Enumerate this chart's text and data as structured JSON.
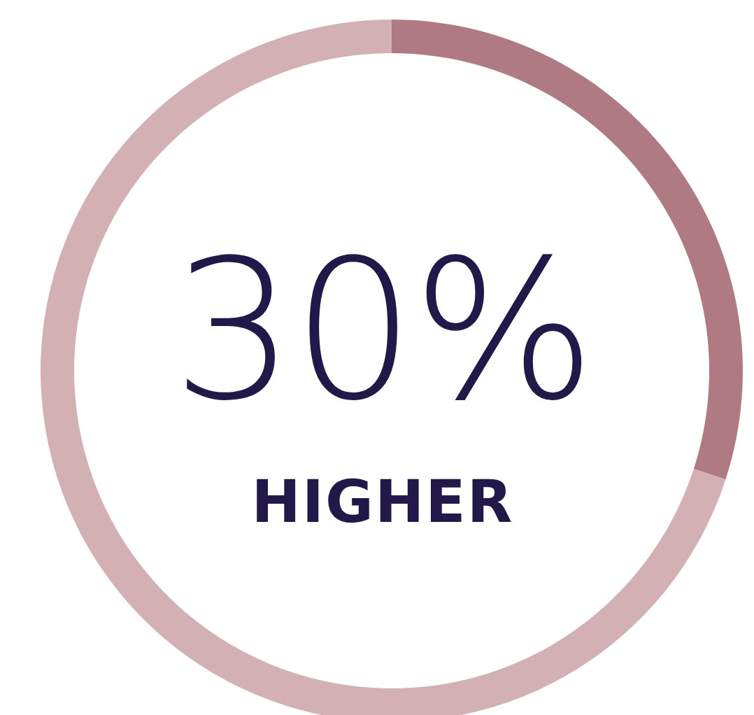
{
  "chart_data": {
    "type": "donut",
    "categories": [
      null,
      null
    ],
    "values": [
      30,
      70
    ],
    "colors": [
      "#b07a82",
      "#d3b0b4"
    ],
    "annotations": [
      "30%",
      "HIGHER"
    ]
  }
}
